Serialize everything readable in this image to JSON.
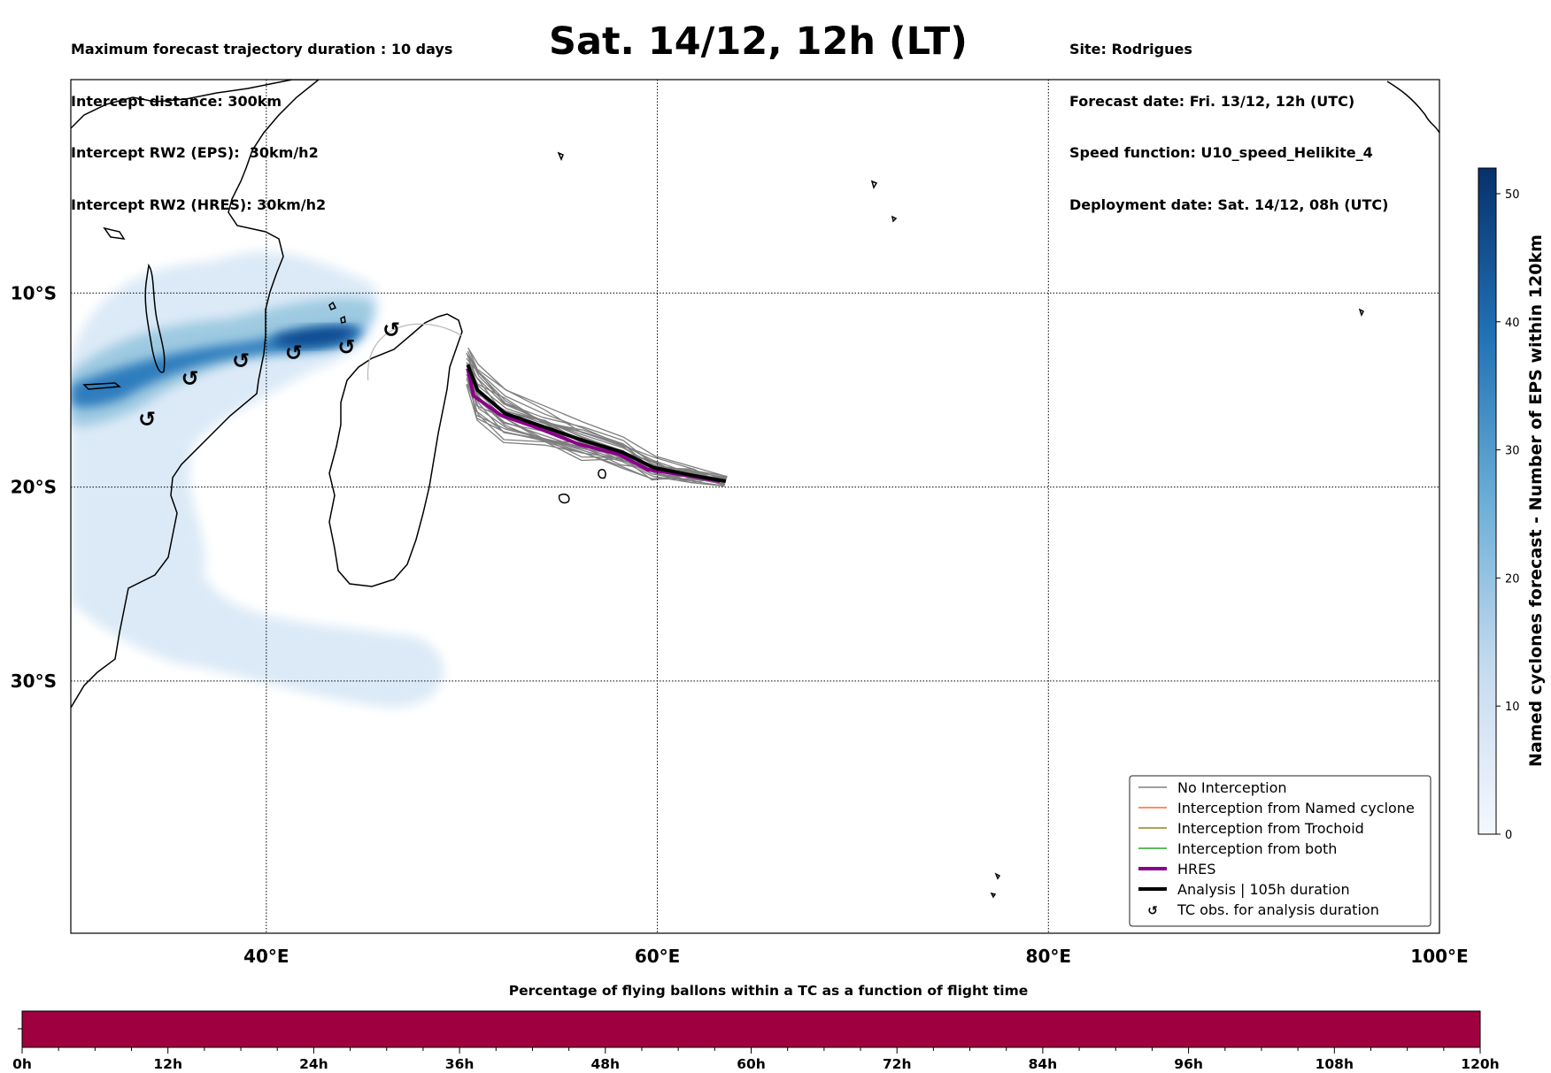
{
  "header": {
    "title": "Sat. 14/12, 12h (LT)",
    "left_lines": [
      "Maximum forecast trajectory duration : 10 days",
      "Intercept distance: 300km",
      "Intercept RW2 (EPS):  30km/h2",
      "Intercept RW2 (HRES): 30km/h2"
    ],
    "right_lines": [
      "Site: Rodrigues",
      "Forecast date: Fri. 13/12, 12h (UTC)",
      "Speed function: U10_speed_Helikite_4",
      "Deployment date: Sat. 14/12, 08h (UTC)"
    ]
  },
  "colors": {
    "no_interception": "#7f7f7f",
    "named_cyclone": "#ff6a2b",
    "trochoid": "#8a8a1a",
    "both": "#2ca02c",
    "hres": "#8b008b",
    "analysis": "#000000",
    "density_low": "#e3eef9",
    "density_high": "#08306b",
    "timebar": "#9e0040"
  },
  "chart_data": [
    {
      "type": "map",
      "lon_range": [
        30,
        100
      ],
      "lat_range": [
        -43,
        1
      ],
      "grid": true,
      "lon_ticks": [
        {
          "value": 40,
          "label": "40°E"
        },
        {
          "value": 60,
          "label": "60°E"
        },
        {
          "value": 80,
          "label": "80°E"
        },
        {
          "value": 100,
          "label": "100°E"
        }
      ],
      "lat_ticks": [
        {
          "value": -10,
          "label": "10°S"
        },
        {
          "value": -20,
          "label": "20°S"
        },
        {
          "value": -30,
          "label": "30°S"
        }
      ],
      "legend_position": "lower-right",
      "legend": [
        {
          "label": "No Interception",
          "style": "no_interception"
        },
        {
          "label": "Interception from Named cyclone",
          "style": "named_cyclone"
        },
        {
          "label": "Interception from Trochoid",
          "style": "trochoid"
        },
        {
          "label": "Interception from both",
          "style": "both"
        },
        {
          "label": "HRES",
          "style": "hres"
        },
        {
          "label": "Analysis | 105h duration",
          "style": "analysis"
        },
        {
          "label": "TC obs. for analysis duration",
          "style": "tc_symbol"
        }
      ],
      "hres_track": [
        [
          50.3,
          -13.9
        ],
        [
          50.6,
          -15.3
        ],
        [
          52.0,
          -16.3
        ],
        [
          54.0,
          -17.0
        ],
        [
          56.0,
          -17.8
        ],
        [
          58.0,
          -18.3
        ],
        [
          59.5,
          -19.1
        ],
        [
          61.5,
          -19.4
        ],
        [
          63.2,
          -19.7
        ]
      ],
      "analysis_track": [
        [
          50.3,
          -13.7
        ],
        [
          50.8,
          -15.0
        ],
        [
          52.2,
          -16.2
        ],
        [
          54.2,
          -16.9
        ],
        [
          56.2,
          -17.6
        ],
        [
          58.2,
          -18.2
        ],
        [
          59.8,
          -19.0
        ],
        [
          61.8,
          -19.4
        ],
        [
          63.5,
          -19.7
        ]
      ],
      "tc_observations": [
        [
          33.9,
          -16.5
        ],
        [
          36.1,
          -14.4
        ],
        [
          38.7,
          -13.5
        ],
        [
          41.4,
          -13.1
        ],
        [
          44.1,
          -12.8
        ],
        [
          46.4,
          -11.9
        ]
      ],
      "ensemble_spread_lat": [
        -1.7,
        1.4
      ],
      "colorbar": {
        "label": "Named cyclones forecast - Number of EPS within 120km",
        "range": [
          0,
          52
        ],
        "ticks": [
          0,
          10,
          20,
          30,
          40,
          50
        ]
      }
    },
    {
      "type": "heatmap",
      "title": "Percentage of flying ballons within a TC as a function of flight time",
      "x_range_hours": [
        0,
        120
      ],
      "ticks": [
        "0h",
        "12h",
        "24h",
        "36h",
        "48h",
        "60h",
        "72h",
        "84h",
        "96h",
        "108h",
        "120h"
      ]
    }
  ]
}
